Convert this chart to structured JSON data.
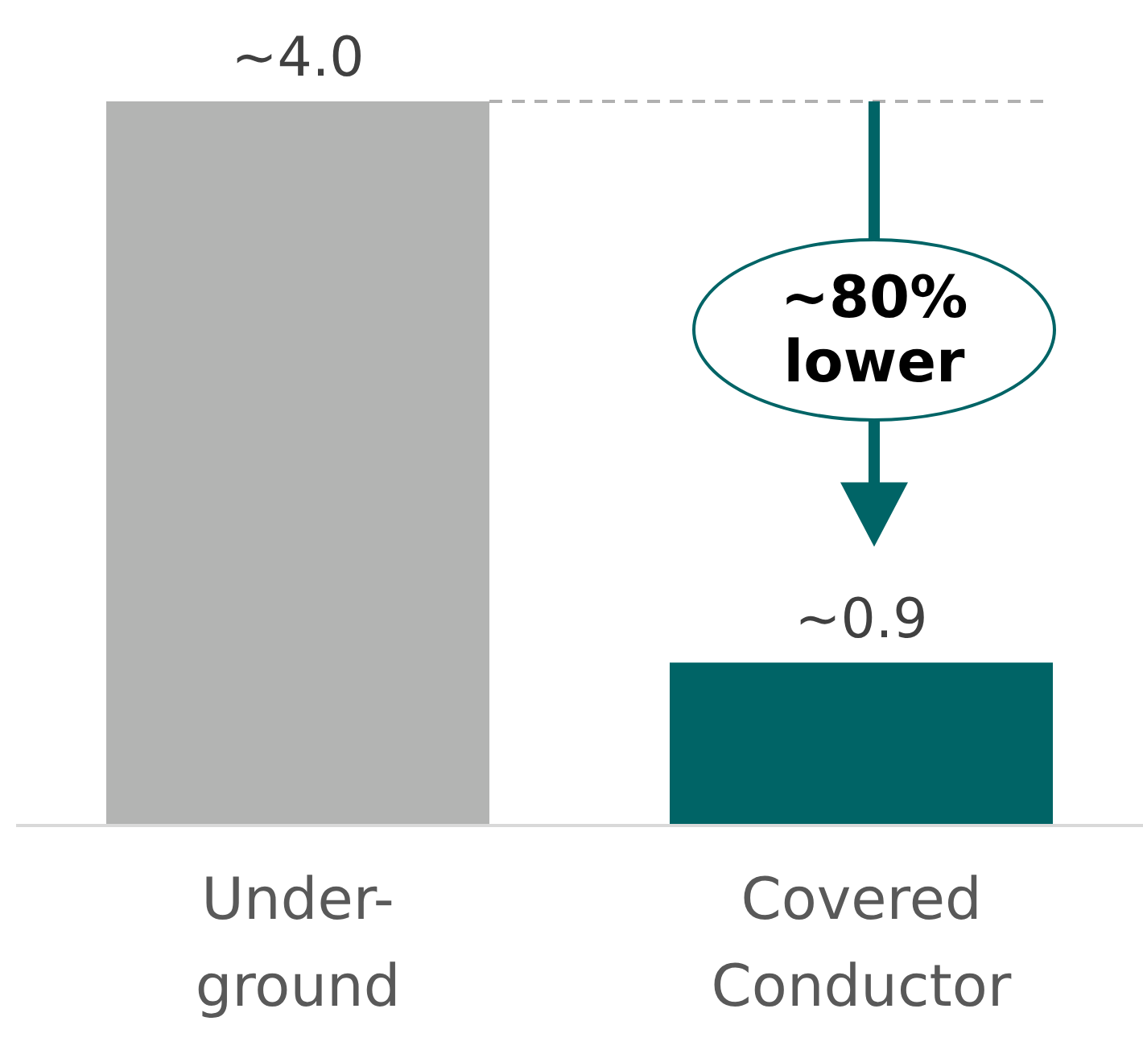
{
  "chart_data": {
    "type": "bar",
    "categories": [
      "Under-\nground",
      "Covered\nConductor"
    ],
    "values": [
      4.0,
      0.9
    ],
    "colors": [
      "#b3b4b3",
      "#006466"
    ],
    "value_labels": [
      "~4.0",
      "~0.9"
    ],
    "ref_lines": [
      {
        "axis": "y",
        "value": 4.0,
        "color": "#b0b0b0",
        "line_style": "dashed"
      }
    ],
    "annotations": [
      "~80%\nlower"
    ]
  }
}
